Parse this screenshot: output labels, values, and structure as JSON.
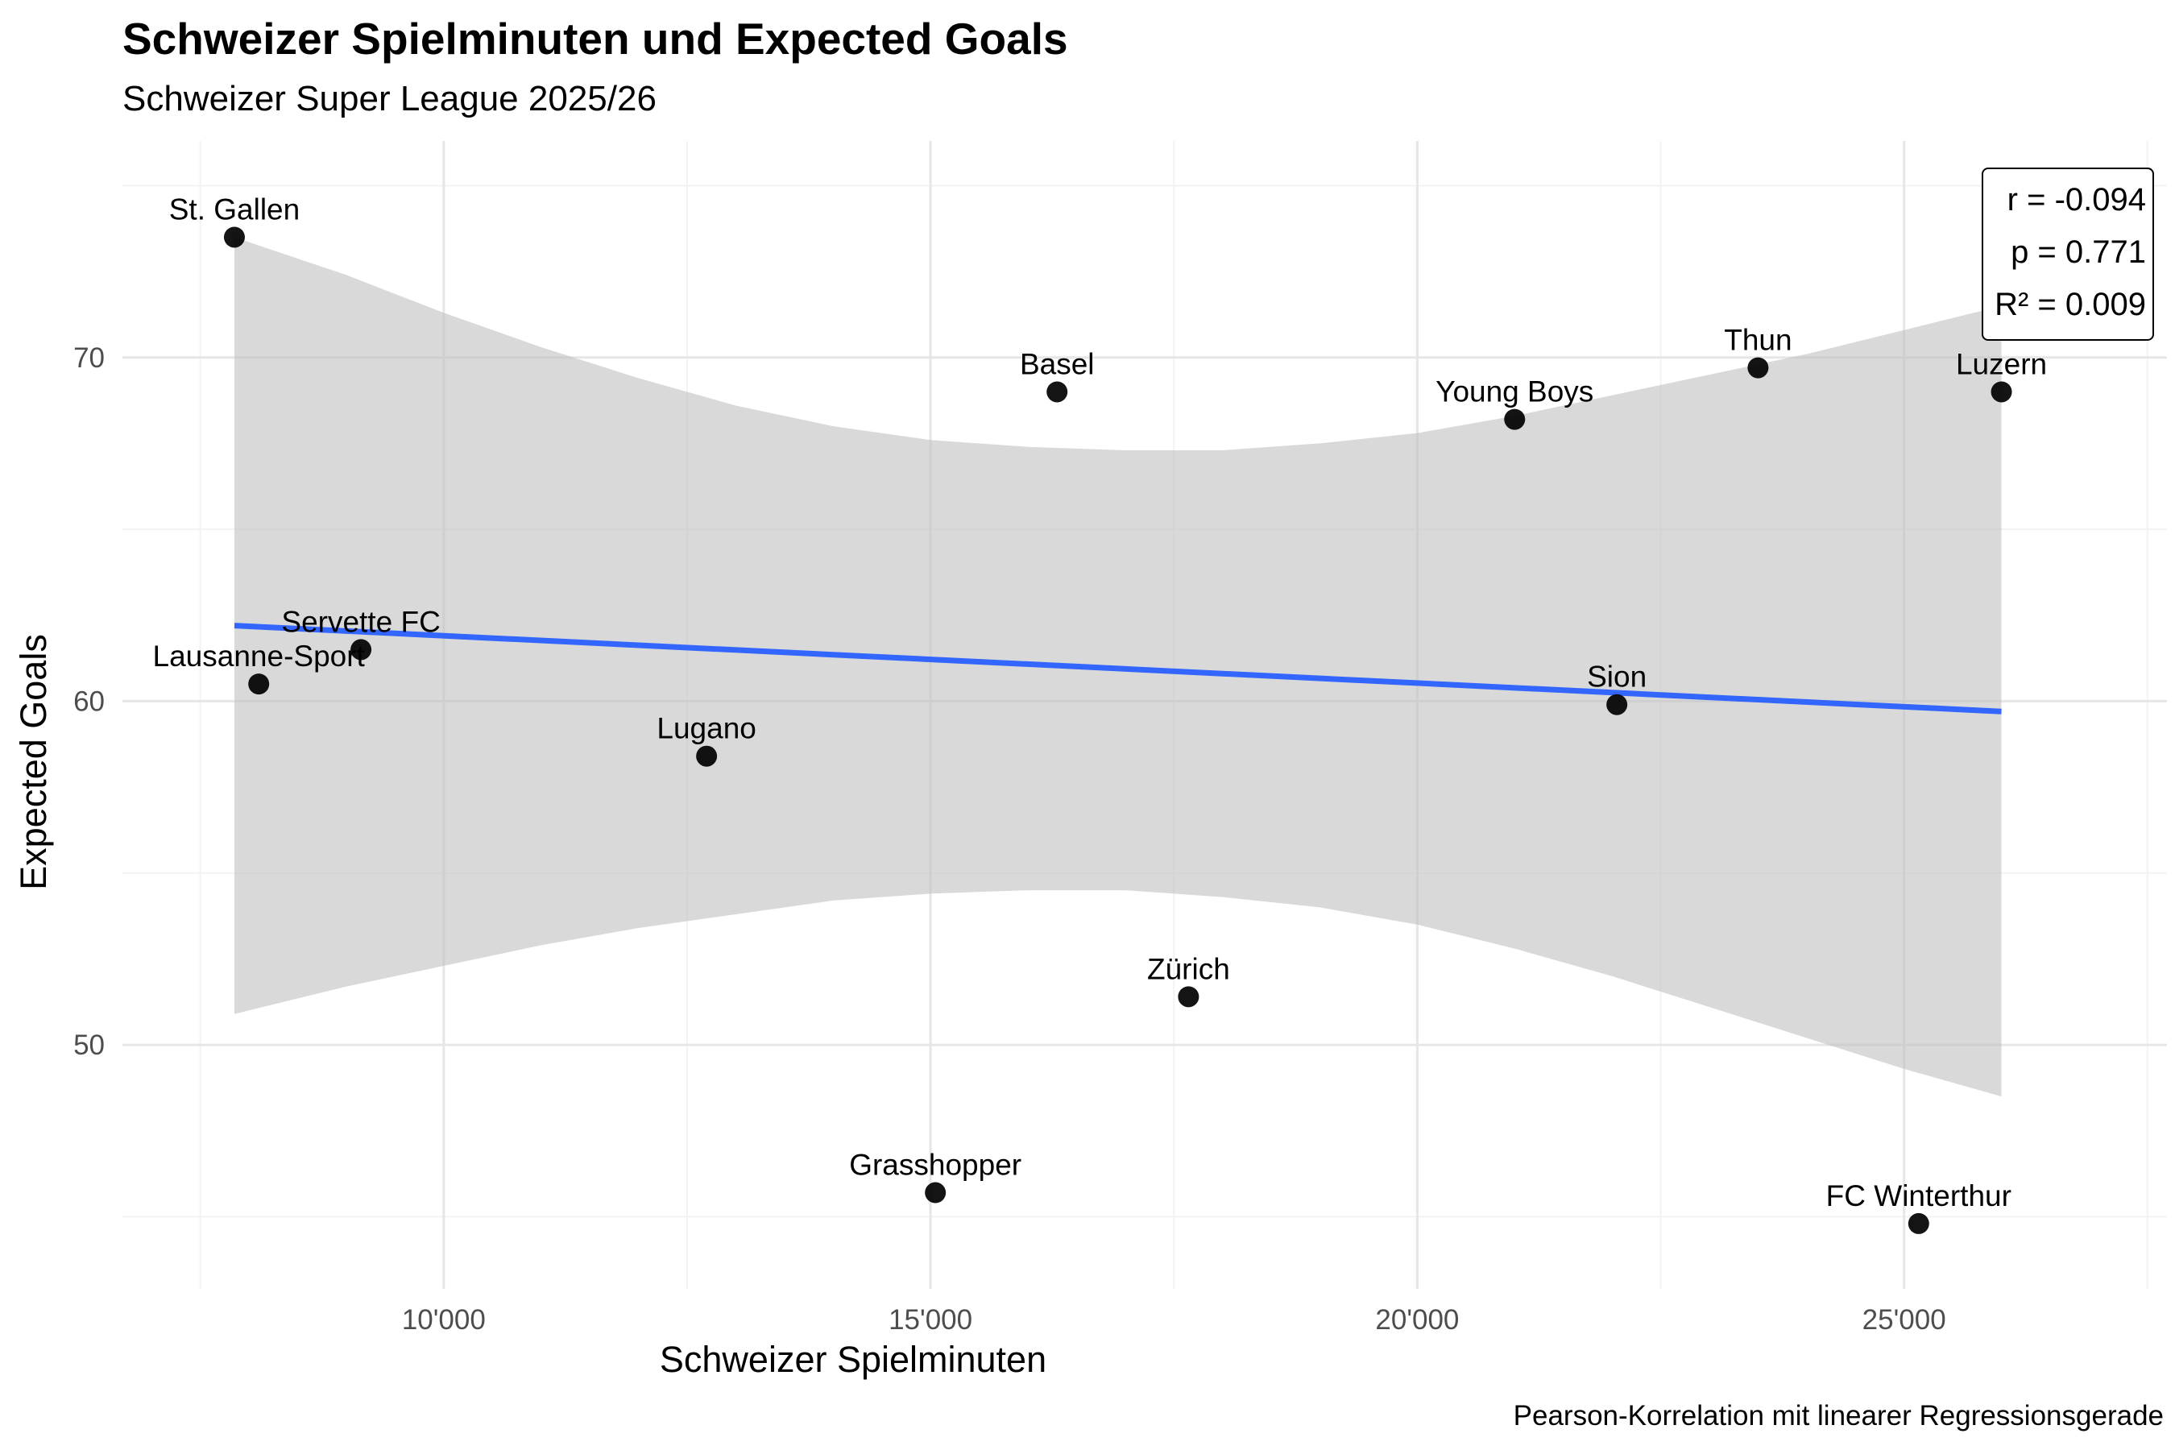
{
  "title": "Schweizer Spielminuten und Expected Goals",
  "subtitle": "Schweizer Super League 2025/26",
  "caption": "Pearson-Korrelation mit linearer Regressionsgerade",
  "stats": {
    "r": "r = -0.094",
    "p": "p = 0.771",
    "r2": "R² = 0.009"
  },
  "colors": {
    "point": "#000000",
    "regression_line": "#3366FF",
    "confidence_band": "#bfbfbf",
    "grid": "#e6e6e6"
  },
  "chart_data": {
    "type": "scatter",
    "title": "Schweizer Spielminuten und Expected Goals",
    "subtitle": "Schweizer Super League 2025/26",
    "xlabel": "Schweizer Spielminuten",
    "ylabel": "Expected Goals",
    "xlim": [
      6700,
      27700
    ],
    "ylim": [
      42.9,
      76.3
    ],
    "x_ticks": [
      10000,
      15000,
      20000,
      25000
    ],
    "x_tick_labels": [
      "10'000",
      "15'000",
      "20'000",
      "25'000"
    ],
    "y_ticks": [
      50,
      60,
      70
    ],
    "y_tick_labels": [
      "50",
      "60",
      "70"
    ],
    "grid": true,
    "points": [
      {
        "label": "St. Gallen",
        "x": 7850,
        "y": 73.5
      },
      {
        "label": "Basel",
        "x": 16300,
        "y": 69.0
      },
      {
        "label": "Young Boys",
        "x": 21000,
        "y": 68.2
      },
      {
        "label": "Thun",
        "x": 23500,
        "y": 69.7
      },
      {
        "label": "Luzern",
        "x": 26000,
        "y": 69.0
      },
      {
        "label": "Servette FC",
        "x": 9150,
        "y": 61.5
      },
      {
        "label": "Lausanne-Sport",
        "x": 8100,
        "y": 60.5
      },
      {
        "label": "Lugano",
        "x": 12700,
        "y": 58.4
      },
      {
        "label": "Sion",
        "x": 22050,
        "y": 59.9
      },
      {
        "label": "Zürich",
        "x": 17650,
        "y": 51.4
      },
      {
        "label": "Grasshopper",
        "x": 15050,
        "y": 45.7
      },
      {
        "label": "FC Winterthur",
        "x": 25150,
        "y": 44.8
      }
    ],
    "regression": {
      "x": [
        7850,
        26000
      ],
      "y": [
        62.2,
        59.7
      ]
    },
    "confidence_band": {
      "x": [
        7850,
        9000,
        10000,
        11000,
        12000,
        13000,
        14000,
        15000,
        16000,
        17000,
        18000,
        19000,
        20000,
        21000,
        22000,
        23000,
        24000,
        25000,
        26000
      ],
      "upper": [
        73.5,
        72.4,
        71.3,
        70.3,
        69.4,
        68.6,
        68.0,
        67.6,
        67.4,
        67.3,
        67.3,
        67.5,
        67.8,
        68.3,
        68.9,
        69.5,
        70.1,
        70.8,
        71.5
      ],
      "lower": [
        50.9,
        51.7,
        52.3,
        52.9,
        53.4,
        53.8,
        54.2,
        54.4,
        54.5,
        54.5,
        54.3,
        54.0,
        53.5,
        52.8,
        52.0,
        51.1,
        50.2,
        49.3,
        48.5
      ]
    }
  }
}
